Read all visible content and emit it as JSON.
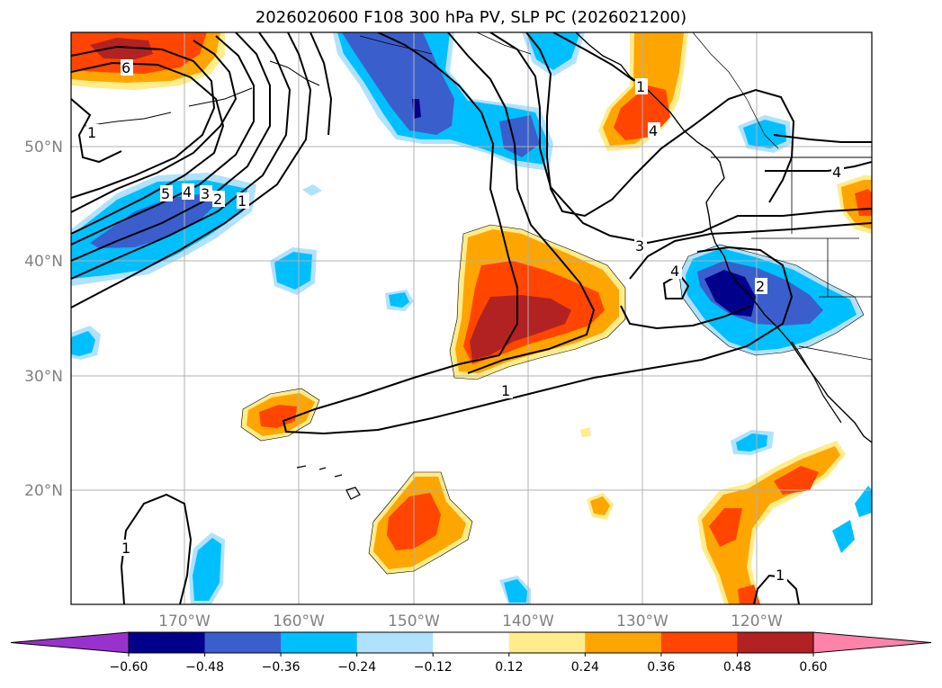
{
  "title": "2026020600 F108 300 hPa PV, SLP PC (2026021200)",
  "map": {
    "lat_labels": [
      "50°N",
      "40°N",
      "30°N",
      "20°N"
    ],
    "lon_labels": [
      "170°W",
      "160°W",
      "150°W",
      "140°W",
      "130°W",
      "120°W"
    ],
    "contour_labels": [
      "6",
      "5",
      "4",
      "3",
      "2",
      "1",
      "1",
      "1",
      "3",
      "4",
      "2",
      "1",
      "1",
      "1",
      "4",
      "4"
    ]
  },
  "colorbar": {
    "ticks": [
      "−0.60",
      "−0.48",
      "−0.36",
      "−0.24",
      "−0.12",
      "0.12",
      "0.24",
      "0.36",
      "0.48",
      "0.60"
    ],
    "colors": {
      "under": "#9932cc",
      "bins": [
        "#00008b",
        "#3a5fcd",
        "#00bfff",
        "#b0e2ff",
        "#ffffff",
        "#ffec8b",
        "#ffa500",
        "#ff4500",
        "#b22222"
      ],
      "over": "#ff82ab"
    }
  }
}
